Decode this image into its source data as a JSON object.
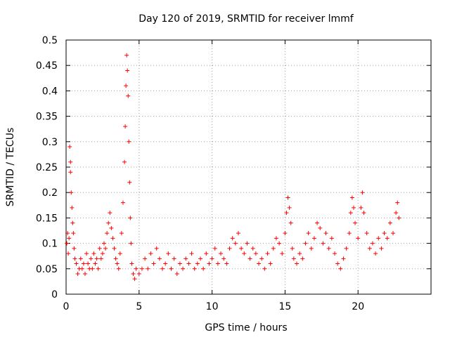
{
  "chart_data": {
    "type": "scatter",
    "title": "Day 120 of 2019, SRMTID for receiver lmmf",
    "xlabel": "GPS time / hours",
    "ylabel": "SRMTID / TECUs",
    "xlim": [
      0,
      25
    ],
    "ylim": [
      0,
      0.5
    ],
    "xticks": [
      0,
      5,
      10,
      15,
      20
    ],
    "yticks": [
      0,
      0.05,
      0.1,
      0.15,
      0.2,
      0.25,
      0.3,
      0.35,
      0.4,
      0.45,
      0.5
    ],
    "grid": true,
    "marker": "+",
    "color": "#ff0000",
    "series": [
      {
        "name": "SRMTID",
        "points": [
          [
            0.05,
            0.1
          ],
          [
            0.1,
            0.12
          ],
          [
            0.15,
            0.08
          ],
          [
            0.2,
            0.11
          ],
          [
            0.25,
            0.29
          ],
          [
            0.3,
            0.26
          ],
          [
            0.3,
            0.24
          ],
          [
            0.35,
            0.2
          ],
          [
            0.4,
            0.17
          ],
          [
            0.45,
            0.14
          ],
          [
            0.5,
            0.12
          ],
          [
            0.55,
            0.09
          ],
          [
            0.6,
            0.07
          ],
          [
            0.7,
            0.06
          ],
          [
            0.8,
            0.04
          ],
          [
            0.9,
            0.05
          ],
          [
            1.0,
            0.07
          ],
          [
            1.1,
            0.05
          ],
          [
            1.2,
            0.06
          ],
          [
            1.3,
            0.04
          ],
          [
            1.4,
            0.08
          ],
          [
            1.5,
            0.06
          ],
          [
            1.6,
            0.05
          ],
          [
            1.7,
            0.07
          ],
          [
            1.8,
            0.05
          ],
          [
            1.9,
            0.08
          ],
          [
            2.0,
            0.06
          ],
          [
            2.1,
            0.07
          ],
          [
            2.2,
            0.05
          ],
          [
            2.3,
            0.09
          ],
          [
            2.4,
            0.07
          ],
          [
            2.5,
            0.08
          ],
          [
            2.6,
            0.1
          ],
          [
            2.7,
            0.09
          ],
          [
            2.8,
            0.12
          ],
          [
            2.9,
            0.14
          ],
          [
            3.0,
            0.16
          ],
          [
            3.1,
            0.13
          ],
          [
            3.2,
            0.11
          ],
          [
            3.3,
            0.09
          ],
          [
            3.4,
            0.07
          ],
          [
            3.5,
            0.06
          ],
          [
            3.6,
            0.05
          ],
          [
            3.7,
            0.08
          ],
          [
            3.8,
            0.12
          ],
          [
            3.9,
            0.18
          ],
          [
            4.0,
            0.26
          ],
          [
            4.05,
            0.33
          ],
          [
            4.1,
            0.41
          ],
          [
            4.15,
            0.47
          ],
          [
            4.2,
            0.44
          ],
          [
            4.25,
            0.39
          ],
          [
            4.3,
            0.3
          ],
          [
            4.35,
            0.22
          ],
          [
            4.4,
            0.15
          ],
          [
            4.45,
            0.1
          ],
          [
            4.5,
            0.06
          ],
          [
            4.6,
            0.04
          ],
          [
            4.7,
            0.03
          ],
          [
            4.8,
            0.05
          ],
          [
            5.0,
            0.04
          ],
          [
            5.2,
            0.05
          ],
          [
            5.4,
            0.07
          ],
          [
            5.6,
            0.05
          ],
          [
            5.8,
            0.08
          ],
          [
            6.0,
            0.06
          ],
          [
            6.2,
            0.09
          ],
          [
            6.4,
            0.07
          ],
          [
            6.6,
            0.05
          ],
          [
            6.8,
            0.06
          ],
          [
            7.0,
            0.08
          ],
          [
            7.2,
            0.05
          ],
          [
            7.4,
            0.07
          ],
          [
            7.6,
            0.04
          ],
          [
            7.8,
            0.06
          ],
          [
            8.0,
            0.05
          ],
          [
            8.2,
            0.07
          ],
          [
            8.4,
            0.06
          ],
          [
            8.6,
            0.08
          ],
          [
            8.8,
            0.05
          ],
          [
            9.0,
            0.06
          ],
          [
            9.2,
            0.07
          ],
          [
            9.4,
            0.05
          ],
          [
            9.6,
            0.08
          ],
          [
            9.8,
            0.06
          ],
          [
            10.0,
            0.07
          ],
          [
            10.2,
            0.09
          ],
          [
            10.4,
            0.06
          ],
          [
            10.6,
            0.08
          ],
          [
            10.8,
            0.07
          ],
          [
            11.0,
            0.06
          ],
          [
            11.2,
            0.09
          ],
          [
            11.4,
            0.11
          ],
          [
            11.6,
            0.1
          ],
          [
            11.8,
            0.12
          ],
          [
            12.0,
            0.09
          ],
          [
            12.2,
            0.08
          ],
          [
            12.4,
            0.1
          ],
          [
            12.6,
            0.07
          ],
          [
            12.8,
            0.09
          ],
          [
            13.0,
            0.08
          ],
          [
            13.2,
            0.06
          ],
          [
            13.4,
            0.07
          ],
          [
            13.6,
            0.05
          ],
          [
            13.8,
            0.08
          ],
          [
            14.0,
            0.06
          ],
          [
            14.2,
            0.09
          ],
          [
            14.4,
            0.11
          ],
          [
            14.6,
            0.1
          ],
          [
            14.8,
            0.08
          ],
          [
            15.0,
            0.12
          ],
          [
            15.1,
            0.16
          ],
          [
            15.2,
            0.19
          ],
          [
            15.3,
            0.17
          ],
          [
            15.4,
            0.14
          ],
          [
            15.5,
            0.09
          ],
          [
            15.6,
            0.07
          ],
          [
            15.8,
            0.06
          ],
          [
            16.0,
            0.08
          ],
          [
            16.2,
            0.07
          ],
          [
            16.4,
            0.1
          ],
          [
            16.6,
            0.12
          ],
          [
            16.8,
            0.09
          ],
          [
            17.0,
            0.11
          ],
          [
            17.2,
            0.14
          ],
          [
            17.4,
            0.13
          ],
          [
            17.6,
            0.1
          ],
          [
            17.8,
            0.12
          ],
          [
            18.0,
            0.09
          ],
          [
            18.2,
            0.11
          ],
          [
            18.4,
            0.08
          ],
          [
            18.6,
            0.06
          ],
          [
            18.8,
            0.05
          ],
          [
            19.0,
            0.07
          ],
          [
            19.2,
            0.09
          ],
          [
            19.4,
            0.12
          ],
          [
            19.5,
            0.16
          ],
          [
            19.6,
            0.19
          ],
          [
            19.7,
            0.17
          ],
          [
            19.8,
            0.14
          ],
          [
            20.0,
            0.11
          ],
          [
            20.2,
            0.17
          ],
          [
            20.3,
            0.2
          ],
          [
            20.4,
            0.16
          ],
          [
            20.6,
            0.12
          ],
          [
            20.8,
            0.09
          ],
          [
            21.0,
            0.1
          ],
          [
            21.2,
            0.08
          ],
          [
            21.4,
            0.11
          ],
          [
            21.6,
            0.09
          ],
          [
            21.8,
            0.12
          ],
          [
            22.0,
            0.11
          ],
          [
            22.2,
            0.14
          ],
          [
            22.4,
            0.12
          ],
          [
            22.6,
            0.16
          ],
          [
            22.7,
            0.18
          ],
          [
            22.8,
            0.15
          ]
        ]
      }
    ]
  }
}
